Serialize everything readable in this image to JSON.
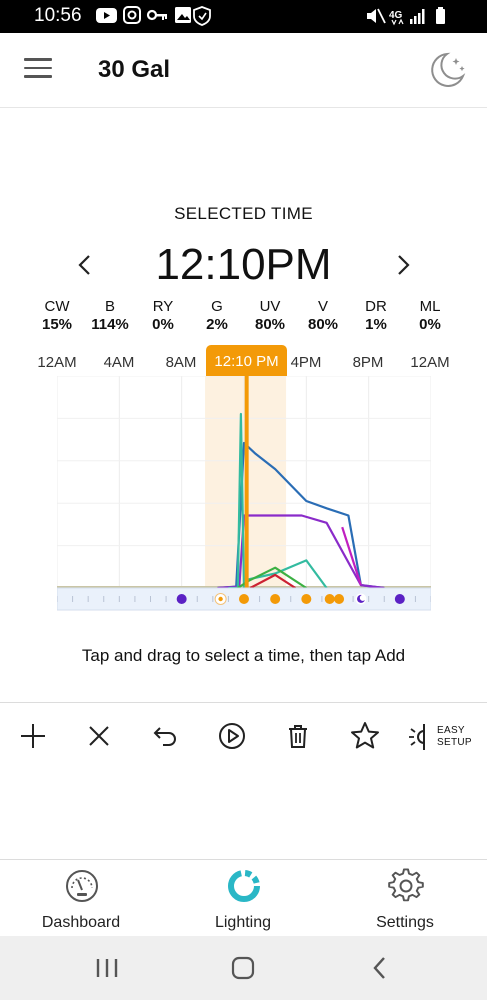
{
  "status_bar": {
    "time": "10:56",
    "left_icons": [
      "youtube-icon",
      "instagram-icon",
      "vpn-key-icon",
      "image-icon",
      "shield-icon"
    ],
    "right_icons": [
      "mute-icon",
      "4g-lte-icon",
      "signal-icon",
      "battery-icon"
    ],
    "network_label": "4G"
  },
  "header": {
    "title": "30 Gal",
    "menu_icon": "hamburger-menu-icon",
    "mode_icon": "moon-stars-icon"
  },
  "selection": {
    "label": "SELECTED TIME",
    "time": "12:10PM"
  },
  "channels": [
    {
      "name": "CW",
      "value": "15%"
    },
    {
      "name": "B",
      "value": "114%"
    },
    {
      "name": "RY",
      "value": "0%"
    },
    {
      "name": "G",
      "value": "2%"
    },
    {
      "name": "UV",
      "value": "80%"
    },
    {
      "name": "V",
      "value": "80%"
    },
    {
      "name": "DR",
      "value": "1%"
    },
    {
      "name": "ML",
      "value": "0%"
    }
  ],
  "timeline": {
    "labels": [
      "12AM",
      "4AM",
      "8AM",
      "12:10 PM",
      "4PM",
      "8PM",
      "12AM"
    ],
    "selected_label": "12:10 PM"
  },
  "chart_data": {
    "type": "line",
    "x_unit": "hour of day",
    "xlim": [
      0,
      24
    ],
    "ylim": [
      0,
      120
    ],
    "selected_hour": 12.17,
    "selection_window": [
      9.5,
      14.7
    ],
    "series": [
      {
        "key": "B",
        "color": "#2a6db5",
        "points": [
          [
            10.3,
            0
          ],
          [
            11.5,
            1
          ],
          [
            12.0,
            100
          ],
          [
            12.7,
            93
          ],
          [
            14.0,
            82
          ],
          [
            16.0,
            60
          ],
          [
            17.3,
            55
          ],
          [
            18.7,
            50
          ],
          [
            19.5,
            2
          ],
          [
            21.0,
            0
          ]
        ]
      },
      {
        "key": "V",
        "color": "#8a2bc9",
        "points": [
          [
            10.3,
            0
          ],
          [
            11.7,
            1
          ],
          [
            12.0,
            50
          ],
          [
            14.0,
            50
          ],
          [
            15.7,
            50
          ],
          [
            17.3,
            45
          ],
          [
            19.5,
            2
          ],
          [
            21.0,
            0
          ]
        ]
      },
      {
        "key": "UV",
        "color": "#c01fc0",
        "points": [
          [
            18.3,
            42
          ],
          [
            19.5,
            2
          ]
        ]
      },
      {
        "key": "CW",
        "color": "#33bba0",
        "points": [
          [
            11.0,
            0
          ],
          [
            11.6,
            0
          ],
          [
            11.8,
            120
          ],
          [
            12.0,
            0
          ],
          [
            12.3,
            6
          ],
          [
            14.0,
            10
          ],
          [
            16.0,
            19
          ],
          [
            17.3,
            0
          ]
        ]
      },
      {
        "key": "G",
        "color": "#3cb043",
        "points": [
          [
            11.6,
            0
          ],
          [
            12.3,
            5
          ],
          [
            14.0,
            14
          ],
          [
            16.0,
            0
          ]
        ]
      },
      {
        "key": "DR",
        "color": "#cc2233",
        "points": [
          [
            12.4,
            0
          ],
          [
            14.0,
            9
          ],
          [
            15.3,
            0
          ]
        ]
      }
    ],
    "event_markers": [
      {
        "hour": 8.0,
        "color": "#5b21c4",
        "kind": "dot"
      },
      {
        "hour": 10.5,
        "color": "#f39a08",
        "kind": "ring"
      },
      {
        "hour": 12.0,
        "color": "#f39a08",
        "kind": "dot"
      },
      {
        "hour": 14.0,
        "color": "#f39a08",
        "kind": "dot"
      },
      {
        "hour": 16.0,
        "color": "#f39a08",
        "kind": "dot"
      },
      {
        "hour": 17.5,
        "color": "#f39a08",
        "kind": "dot"
      },
      {
        "hour": 18.1,
        "color": "#f39a08",
        "kind": "dot"
      },
      {
        "hour": 19.5,
        "color": "#5b21c4",
        "kind": "moon"
      },
      {
        "hour": 22.0,
        "color": "#5b21c4",
        "kind": "dot"
      }
    ]
  },
  "hint": "Tap and drag to select a time, then tap Add",
  "toolbar": {
    "items": [
      "add-icon",
      "delete-point-icon",
      "undo-icon",
      "play-icon",
      "trash-icon",
      "favorite-star-icon"
    ],
    "easy_setup_line1": "EASY",
    "easy_setup_line2": "SETUP"
  },
  "bottom_nav": [
    {
      "label": "Dashboard",
      "icon": "gauge-icon"
    },
    {
      "label": "Lighting",
      "icon": "lighting-ring-icon",
      "active": true,
      "color": "#2ab7c6"
    },
    {
      "label": "Settings",
      "icon": "gear-icon"
    }
  ],
  "system_nav": [
    "recents-icon",
    "home-icon",
    "back-icon"
  ]
}
